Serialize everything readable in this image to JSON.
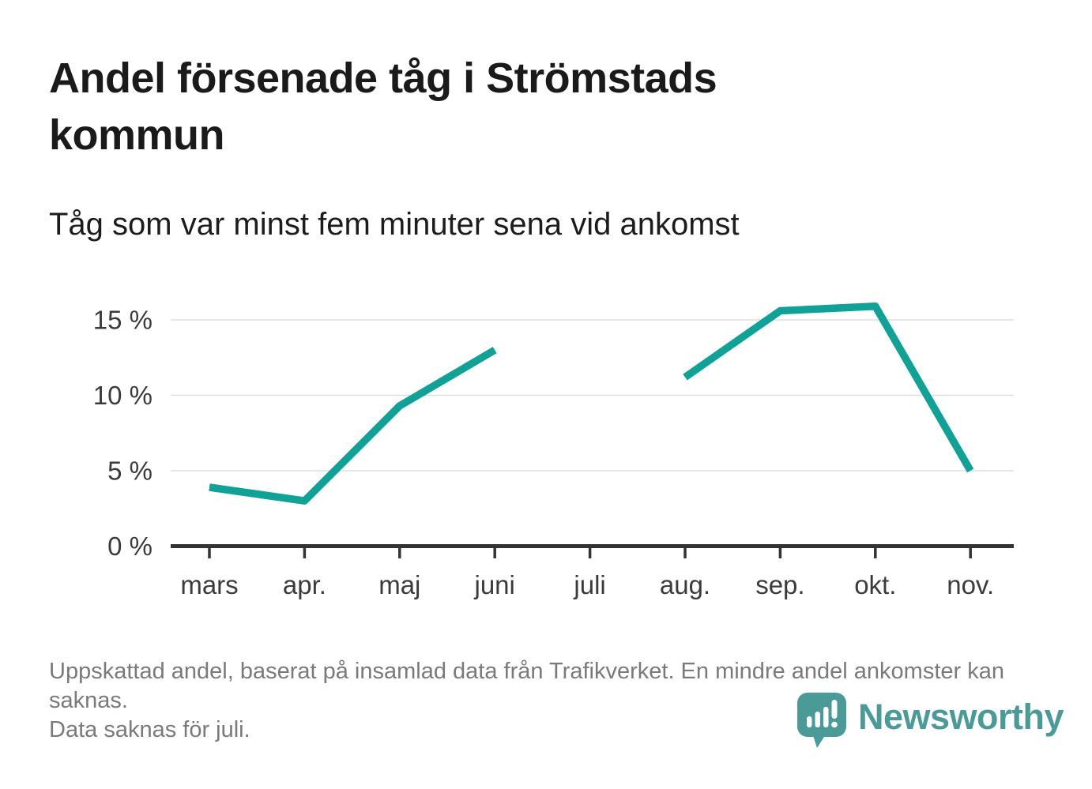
{
  "header": {
    "title": "Andel försenade tåg i Strömstads kommun",
    "subtitle": "Tåg som var minst fem minuter sena vid ankomst"
  },
  "chart_data": {
    "type": "line",
    "title": "Andel försenade tåg i Strömstads kommun",
    "subtitle": "Tåg som var minst fem minuter sena vid ankomst",
    "categories": [
      "mars",
      "apr.",
      "maj",
      "juni",
      "juli",
      "aug.",
      "sep.",
      "okt.",
      "nov."
    ],
    "series": [
      {
        "name": "Andel försenade tåg",
        "values": [
          3.9,
          3.0,
          9.3,
          13.0,
          null,
          11.2,
          15.6,
          15.9,
          5.0
        ]
      }
    ],
    "unit": "%",
    "xlabel": "",
    "ylabel": "",
    "ylim": [
      0,
      17
    ],
    "yticks": [
      0,
      5,
      10,
      15
    ],
    "ytick_labels": [
      "0 %",
      "5 %",
      "10 %",
      "15 %"
    ],
    "grid": "horizontal-only",
    "legend_position": "none",
    "missing_data_note": "Data saknas för juli.",
    "colors": {
      "line": "#10a296",
      "gridline": "#dddddd",
      "axis": "#333333",
      "tick_label": "#3b3b3b"
    }
  },
  "footer": {
    "notes": [
      "Uppskattad andel, baserat på insamlad data från Trafikverket. En mindre andel ankomster kan saknas.",
      "Data saknas för juli."
    ],
    "brand": {
      "name": "Newsworthy",
      "icon": "speech-bubble-bar-chart-icon",
      "color": "#4a9b97"
    }
  }
}
